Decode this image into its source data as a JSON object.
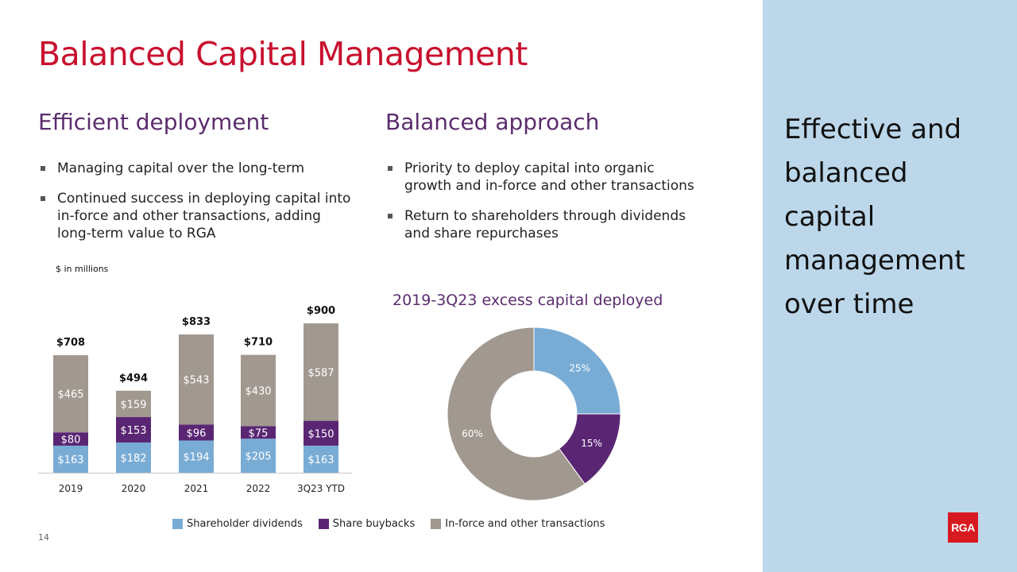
{
  "title": "Balanced Capital Management",
  "left": {
    "heading": "Efficient deployment",
    "bullets": [
      "Managing capital over the long-term",
      "Continued success in deploying capital into in-force and other transactions, adding long-term value to RGA"
    ]
  },
  "right": {
    "heading": "Balanced approach",
    "bullets": [
      "Priority to deploy capital into organic growth and in-force and other transactions",
      "Return to shareholders through dividends and share repurchases"
    ]
  },
  "sidebar": {
    "text": "Effective and balanced capital management over time",
    "logo": "RGA"
  },
  "page_number": "14",
  "colors": {
    "dividends": "#79acd5",
    "buybacks": "#5a2674",
    "inforce": "#a19890",
    "title": "#c8102e",
    "heading": "#5b2d6e",
    "sidebar_bg": "#bcd7ea"
  },
  "legend": [
    "Shareholder dividends",
    "Share buybacks",
    "In-force and other transactions"
  ],
  "chart_data": [
    {
      "type": "bar",
      "stacked": true,
      "ylabel": "$ in millions",
      "categories": [
        "2019",
        "2020",
        "2021",
        "2022",
        "3Q23 YTD"
      ],
      "series": [
        {
          "name": "Shareholder dividends",
          "values": [
            163,
            182,
            194,
            205,
            163
          ],
          "labels": [
            "$163",
            "$182",
            "$194",
            "$205",
            "$163"
          ]
        },
        {
          "name": "Share buybacks",
          "values": [
            80,
            153,
            96,
            75,
            150
          ],
          "labels": [
            "$80",
            "$153",
            "$96",
            "$75",
            "$150"
          ]
        },
        {
          "name": "In-force and other transactions",
          "values": [
            465,
            159,
            543,
            430,
            587
          ],
          "labels": [
            "$465",
            "$159",
            "$543",
            "$430",
            "$587"
          ]
        }
      ],
      "totals": [
        708,
        494,
        833,
        710,
        900
      ],
      "total_labels": [
        "$708",
        "$494",
        "$833",
        "$710",
        "$900"
      ],
      "legend": "bottom"
    },
    {
      "type": "pie",
      "donut": true,
      "title": "2019-3Q23 excess capital deployed",
      "labels": [
        "Shareholder dividends",
        "Share buybacks",
        "In-force and other transactions"
      ],
      "values": [
        25,
        15,
        60
      ],
      "value_labels": [
        "25%",
        "15%",
        "60%"
      ]
    }
  ]
}
